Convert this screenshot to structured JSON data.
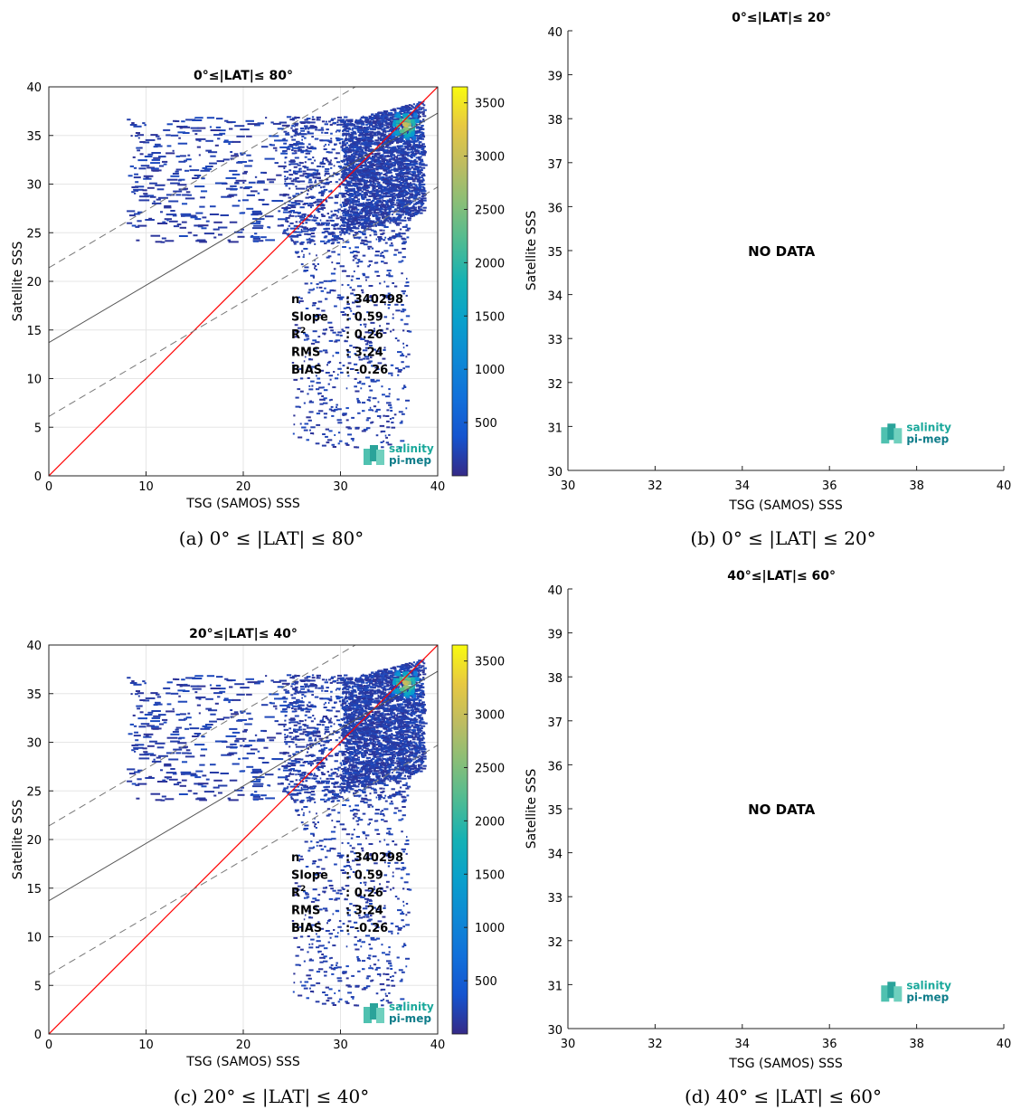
{
  "panels": [
    {
      "caption": "(a) 0° ≤ |LAT| ≤ 80°",
      "title": "0°≤|LAT|≤ 80°",
      "has_data": true,
      "stats": {
        "n_label": "n",
        "n_value": ": 340298",
        "slope_label": "Slope",
        "slope_value": ": 0.59",
        "r2_label": "R",
        "r2_value": ": 0.26",
        "rms_label": "RMS",
        "rms_value": ": 3.24",
        "bias_label": "BIAS",
        "bias_value": ": -0.26"
      },
      "logo": {
        "line1": "salinity",
        "line2": "pi-mep"
      }
    },
    {
      "caption": "(b) 0° ≤ |LAT| ≤ 20°",
      "title": "0°≤|LAT|≤ 20°",
      "has_data": false,
      "no_data_text": "NO DATA",
      "logo": {
        "line1": "salinity",
        "line2": "pi-mep"
      }
    },
    {
      "caption": "(c) 20° ≤ |LAT| ≤ 40°",
      "title": "20°≤|LAT|≤ 40°",
      "has_data": true,
      "stats": {
        "n_label": "n",
        "n_value": ": 340298",
        "slope_label": "Slope",
        "slope_value": ": 0.59",
        "r2_label": "R",
        "r2_value": ": 0.26",
        "rms_label": "RMS",
        "rms_value": ": 3.24",
        "bias_label": "BIAS",
        "bias_value": ": -0.26"
      },
      "logo": {
        "line1": "salinity",
        "line2": "pi-mep"
      }
    },
    {
      "caption": "(d) 40° ≤ |LAT| ≤ 60°",
      "title": "40°≤|LAT|≤ 60°",
      "has_data": false,
      "no_data_text": "NO DATA",
      "logo": {
        "line1": "salinity",
        "line2": "pi-mep"
      }
    }
  ],
  "chart_data": [
    {
      "type": "heatmap",
      "title": "0°≤|LAT|≤ 80°",
      "xlabel": "TSG (SAMOS) SSS",
      "ylabel": "Satellite SSS",
      "xlim": [
        0,
        40
      ],
      "ylim": [
        0,
        40
      ],
      "xticks": [
        0,
        10,
        20,
        30,
        40
      ],
      "yticks": [
        0,
        5,
        10,
        15,
        20,
        25,
        30,
        35,
        40
      ],
      "colorbar": {
        "range": [
          0,
          3650
        ],
        "ticks": [
          500,
          1000,
          1500,
          2000,
          2500,
          3000,
          3500
        ],
        "colormap": "parula"
      },
      "lines": {
        "identity": {
          "slope": 1,
          "intercept": 0,
          "color": "#ff0000"
        },
        "fit": {
          "slope": 0.59,
          "intercept": 13.7,
          "color": "#555555"
        },
        "fit_bounds": [
          {
            "slope": 0.59,
            "intercept": 21.4
          },
          {
            "slope": 0.59,
            "intercept": 6.1
          }
        ]
      },
      "stats": {
        "n": 340298,
        "slope": 0.59,
        "r2": 0.26,
        "rms": 3.24,
        "bias": -0.26
      },
      "density_peak": {
        "x": 36.5,
        "y": 36.2
      },
      "grid": true
    },
    {
      "type": "scatter",
      "title": "0°≤|LAT|≤ 20°",
      "xlabel": "TSG (SAMOS) SSS",
      "ylabel": "Satellite SSS",
      "xlim": [
        30,
        40
      ],
      "ylim": [
        30,
        40
      ],
      "xticks": [
        30,
        32,
        34,
        36,
        38,
        40
      ],
      "yticks": [
        30,
        31,
        32,
        33,
        34,
        35,
        36,
        37,
        38,
        39,
        40
      ],
      "annotation": "NO DATA",
      "grid": false
    },
    {
      "type": "heatmap",
      "title": "20°≤|LAT|≤ 40°",
      "xlabel": "TSG (SAMOS) SSS",
      "ylabel": "Satellite SSS",
      "xlim": [
        0,
        40
      ],
      "ylim": [
        0,
        40
      ],
      "xticks": [
        0,
        10,
        20,
        30,
        40
      ],
      "yticks": [
        0,
        5,
        10,
        15,
        20,
        25,
        30,
        35,
        40
      ],
      "colorbar": {
        "range": [
          0,
          3650
        ],
        "ticks": [
          500,
          1000,
          1500,
          2000,
          2500,
          3000,
          3500
        ],
        "colormap": "parula"
      },
      "lines": {
        "identity": {
          "slope": 1,
          "intercept": 0,
          "color": "#ff0000"
        },
        "fit": {
          "slope": 0.59,
          "intercept": 13.7,
          "color": "#555555"
        },
        "fit_bounds": [
          {
            "slope": 0.59,
            "intercept": 21.4
          },
          {
            "slope": 0.59,
            "intercept": 6.1
          }
        ]
      },
      "stats": {
        "n": 340298,
        "slope": 0.59,
        "r2": 0.26,
        "rms": 3.24,
        "bias": -0.26
      },
      "density_peak": {
        "x": 36.5,
        "y": 36.2
      },
      "grid": true
    },
    {
      "type": "scatter",
      "title": "40°≤|LAT|≤ 60°",
      "xlabel": "TSG (SAMOS) SSS",
      "ylabel": "Satellite SSS",
      "xlim": [
        30,
        40
      ],
      "ylim": [
        30,
        40
      ],
      "xticks": [
        30,
        32,
        34,
        36,
        38,
        40
      ],
      "yticks": [
        30,
        31,
        32,
        33,
        34,
        35,
        36,
        37,
        38,
        39,
        40
      ],
      "annotation": "NO DATA",
      "grid": false
    }
  ]
}
